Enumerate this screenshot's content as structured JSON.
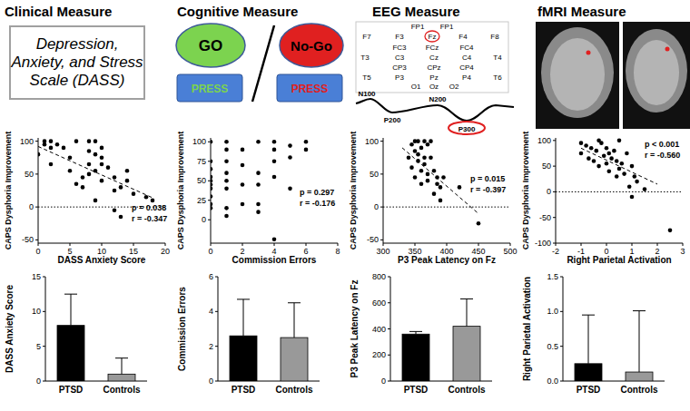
{
  "panels": [
    {
      "header": "Clinical Measure",
      "text": "Depression, Anxiety, and Stress Scale (DASS)"
    },
    {
      "header": "Cognitive Measure",
      "go": "GO",
      "nogo": "No-Go",
      "press": [
        "PRESS",
        "PRESS"
      ]
    },
    {
      "header": "EEG Measure",
      "electrodes": [
        "FP1",
        "FP1",
        "F7",
        "F3",
        "Fz",
        "F4",
        "F8",
        "FC3",
        "FCz",
        "FC4",
        "T3",
        "C3",
        "Cz",
        "C4",
        "T4",
        "CP3",
        "CPz",
        "CP4",
        "T5",
        "P3",
        "Pz",
        "P4",
        "T6",
        "O1",
        "Oz",
        "O2"
      ],
      "highlighted_electrode": "Fz",
      "components": [
        "N100",
        "N200",
        "P200",
        "P300"
      ],
      "highlighted_component": "P300"
    },
    {
      "header": "fMRI Measure"
    }
  ],
  "chart_data": [
    {
      "type": "scatter",
      "x": [
        0,
        1,
        1,
        2,
        2,
        2,
        3,
        4,
        5,
        5,
        6,
        6,
        7,
        7,
        8,
        8,
        8,
        8,
        9,
        9,
        9,
        9,
        10,
        10,
        10,
        10,
        11,
        12,
        12,
        12,
        13,
        13,
        14,
        14,
        15,
        17,
        18
      ],
      "values": [
        80,
        95,
        100,
        90,
        65,
        100,
        95,
        90,
        75,
        55,
        100,
        35,
        45,
        30,
        100,
        85,
        65,
        50,
        100,
        80,
        55,
        10,
        90,
        75,
        65,
        40,
        60,
        25,
        -5,
        45,
        30,
        -15,
        55,
        40,
        20,
        15,
        10
      ],
      "xlim": [
        0,
        20
      ],
      "ylim": [
        -55,
        105
      ],
      "xticks": [
        0,
        5,
        10,
        15,
        20
      ],
      "yticks": [
        -50,
        0,
        50,
        100
      ],
      "x_label": "DASS Anxiety Score",
      "y_label": "CAPS Dysphoria Improvement",
      "annotations": [
        "p = 0.038",
        "r = -0.347"
      ],
      "trend_line": {
        "x": [
          0,
          18
        ],
        "values": [
          92,
          14
        ]
      },
      "reference_line": 0,
      "color": "#000000",
      "marker": "circle"
    },
    {
      "type": "scatter",
      "x": [
        0,
        0,
        0,
        0,
        0,
        0,
        0,
        0,
        0,
        0,
        1,
        1,
        1,
        1,
        1,
        1,
        1,
        1,
        2,
        2,
        2,
        2,
        3,
        3,
        3,
        3,
        3,
        4,
        4,
        4,
        4,
        4,
        5,
        5,
        5,
        6,
        6
      ],
      "values": [
        100,
        75,
        65,
        55,
        50,
        45,
        40,
        30,
        20,
        15,
        100,
        90,
        75,
        60,
        50,
        40,
        15,
        5,
        90,
        70,
        45,
        20,
        100,
        60,
        45,
        20,
        10,
        100,
        90,
        75,
        55,
        -25,
        95,
        80,
        40,
        100,
        90
      ],
      "xlim": [
        0,
        8
      ],
      "ylim": [
        -30,
        105
      ],
      "xticks": [
        0,
        2,
        4,
        6,
        8
      ],
      "yticks": [
        0,
        25,
        50,
        75,
        100
      ],
      "x_label": "Commission Errors",
      "y_label": "CAPS Dysphoria Improvement",
      "annotations": [
        "p = 0.297",
        "r = -0.176"
      ],
      "color": "#000000",
      "marker": "circle"
    },
    {
      "type": "scatter",
      "x": [
        340,
        345,
        345,
        350,
        350,
        350,
        355,
        355,
        355,
        360,
        360,
        360,
        365,
        365,
        365,
        370,
        370,
        370,
        375,
        375,
        380,
        380,
        385,
        385,
        390,
        390,
        395,
        420,
        450
      ],
      "values": [
        75,
        60,
        95,
        100,
        85,
        45,
        100,
        80,
        70,
        90,
        55,
        35,
        100,
        75,
        65,
        95,
        50,
        40,
        100,
        75,
        55,
        20,
        45,
        35,
        30,
        10,
        45,
        30,
        -25
      ],
      "xlim": [
        300,
        500
      ],
      "ylim": [
        -55,
        105
      ],
      "xticks": [
        300,
        350,
        400,
        450,
        500
      ],
      "yticks": [
        -50,
        0,
        50,
        100
      ],
      "x_label": "P3 Peak Latency on Fz",
      "y_label": "CAPS Dysphoria Improvement",
      "annotations": [
        "p = 0.015",
        "r = -0.397"
      ],
      "trend_line": {
        "x": [
          330,
          450
        ],
        "values": [
          90,
          -10
        ]
      },
      "reference_line": 0,
      "color": "#000000",
      "marker": "circle"
    },
    {
      "type": "scatter",
      "x": [
        -1,
        -1,
        -0.8,
        -0.7,
        -0.6,
        -0.5,
        -0.4,
        -0.3,
        -0.3,
        -0.2,
        -0.1,
        0,
        0,
        0.1,
        0.1,
        0.2,
        0.3,
        0.4,
        0.4,
        0.5,
        0.5,
        0.6,
        0.7,
        0.8,
        0.9,
        1,
        1,
        1.1,
        1.2,
        1.5,
        2.5
      ],
      "values": [
        95,
        75,
        90,
        65,
        85,
        60,
        80,
        100,
        50,
        95,
        70,
        85,
        55,
        40,
        75,
        65,
        80,
        30,
        60,
        100,
        45,
        55,
        35,
        75,
        10,
        50,
        -10,
        30,
        20,
        5,
        -75
      ],
      "xlim": [
        -2,
        3
      ],
      "ylim": [
        -100,
        105
      ],
      "xticks": [
        -2,
        -1,
        0,
        1,
        2,
        3
      ],
      "yticks": [
        -100,
        -50,
        0,
        50,
        100
      ],
      "x_label": "Right Parietal Activation",
      "y_label": "CAPS Dysphoria Improvement",
      "annotations": [
        "p < 0.001",
        "r = -0.560"
      ],
      "trend_line": {
        "x": [
          -1,
          2
        ],
        "values": [
          85,
          15
        ]
      },
      "reference_line": 0,
      "color": "#000000",
      "marker": "circle"
    },
    {
      "type": "bar",
      "categories": [
        "PTSD",
        "Controls"
      ],
      "values": [
        8,
        1
      ],
      "errors": [
        4.5,
        2.3
      ],
      "colors": [
        "#000000",
        "#999999"
      ],
      "ylim": [
        0,
        15
      ],
      "yticks": [
        0,
        5,
        10,
        15
      ],
      "y_label": "DASS Anxiety Score"
    },
    {
      "type": "bar",
      "categories": [
        "PTSD",
        "Controls"
      ],
      "values": [
        2.6,
        2.5
      ],
      "errors": [
        2.1,
        2.0
      ],
      "colors": [
        "#000000",
        "#999999"
      ],
      "ylim": [
        0,
        6
      ],
      "yticks": [
        0,
        2,
        4,
        6
      ],
      "y_label": "Commission Errors"
    },
    {
      "type": "bar",
      "categories": [
        "PTSD",
        "Controls"
      ],
      "values": [
        360,
        420
      ],
      "errors": [
        20,
        210
      ],
      "colors": [
        "#000000",
        "#999999"
      ],
      "ylim": [
        0,
        800
      ],
      "yticks": [
        0,
        200,
        400,
        600,
        800
      ],
      "y_label": "P3 Peak Latency on Fz"
    },
    {
      "type": "bar",
      "categories": [
        "PTSD",
        "Controls"
      ],
      "values": [
        0.25,
        0.13
      ],
      "errors": [
        0.7,
        0.88
      ],
      "colors": [
        "#000000",
        "#999999"
      ],
      "ylim": [
        0,
        1.5
      ],
      "yticks": [
        {
          "value": 0,
          "label": "0.0"
        },
        {
          "value": 0.5,
          "label": "0.5"
        },
        {
          "value": 1,
          "label": "1.0"
        },
        {
          "value": 1.5,
          "label": "1.5"
        }
      ],
      "y_label": "Right Parietal Activation"
    }
  ]
}
